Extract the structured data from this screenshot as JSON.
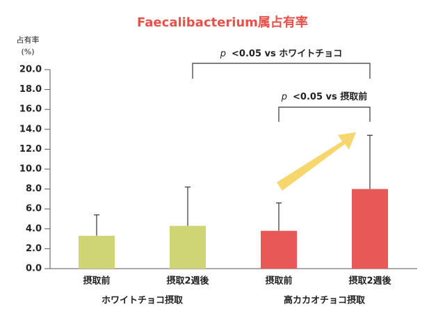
{
  "chart_data": {
    "type": "bar",
    "title": "Faecalibacterium属占有率",
    "y_label": [
      "占有率",
      "(%)"
    ],
    "categories": [
      "摂取前",
      "摂取2週後",
      "摂取前",
      "摂取2週後"
    ],
    "groups": [
      "ホワイトチョコ摂取",
      "高カカオチョコ摂取"
    ],
    "values": [
      3.3,
      4.3,
      3.8,
      8.0
    ],
    "errors": [
      2.1,
      3.9,
      2.8,
      5.4
    ],
    "colors": [
      "#cfd574",
      "#cfd574",
      "#e85856",
      "#e85856"
    ],
    "ylim": [
      0,
      20
    ],
    "yticks": [
      {
        "value": 0,
        "label": "0.0"
      },
      {
        "value": 2,
        "label": "2.0"
      },
      {
        "value": 4,
        "label": "4.0"
      },
      {
        "value": 6,
        "label": "6.0"
      },
      {
        "value": 8,
        "label": "8.0"
      },
      {
        "value": 10,
        "label": "10.0"
      },
      {
        "value": 12,
        "label": "12.0"
      },
      {
        "value": 14,
        "label": "14.0"
      },
      {
        "value": 16,
        "label": "16.0"
      },
      {
        "value": 18,
        "label": "18.0"
      },
      {
        "value": 20,
        "label": "20.0"
      }
    ],
    "grid": true,
    "annotations": [
      {
        "p": "p",
        "text": "<0.05 vs ホワイトチョコ"
      },
      {
        "p": "p",
        "text": "<0.05 vs 摂取前"
      }
    ]
  }
}
